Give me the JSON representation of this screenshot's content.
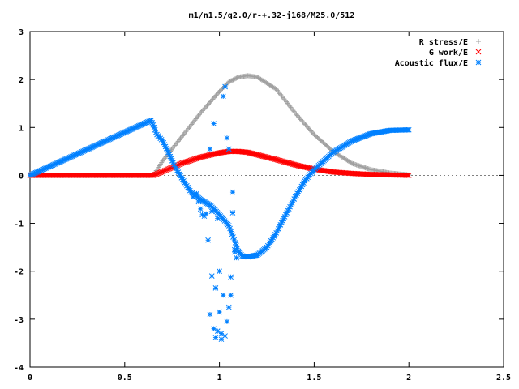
{
  "chart_data": {
    "type": "scatter",
    "title": "m1/n1.5/q2.0/r-+.32-j168/M25.0/512",
    "xlabel": "",
    "ylabel": "",
    "xlim": [
      0,
      2.5
    ],
    "ylim": [
      -4,
      3
    ],
    "x_ticks": [
      "0",
      "0.5",
      "1",
      "1.5",
      "2",
      "2.5"
    ],
    "y_ticks": [
      "-4",
      "-3",
      "-2",
      "-1",
      "0",
      "1",
      "2",
      "3"
    ],
    "grid": false,
    "legend_position": "top-right",
    "series": [
      {
        "name": "R stress/E",
        "marker": "plus",
        "color": "#a0a0a0",
        "x": [
          0,
          0.65,
          0.7,
          0.8,
          0.9,
          1.0,
          1.05,
          1.1,
          1.15,
          1.2,
          1.3,
          1.4,
          1.5,
          1.6,
          1.7,
          1.8,
          1.9,
          2.0
        ],
        "y": [
          0,
          0,
          0.3,
          0.8,
          1.3,
          1.75,
          1.95,
          2.05,
          2.08,
          2.05,
          1.8,
          1.3,
          0.85,
          0.5,
          0.25,
          0.12,
          0.05,
          0.01
        ]
      },
      {
        "name": "G work/E",
        "marker": "cross",
        "color": "#ff0000",
        "x": [
          0,
          0.65,
          0.7,
          0.8,
          0.9,
          1.0,
          1.05,
          1.1,
          1.15,
          1.2,
          1.3,
          1.4,
          1.5,
          1.6,
          1.7,
          1.8,
          1.9,
          2.0
        ],
        "y": [
          0,
          0,
          0.08,
          0.25,
          0.38,
          0.47,
          0.5,
          0.5,
          0.48,
          0.43,
          0.33,
          0.22,
          0.13,
          0.07,
          0.04,
          0.02,
          0.01,
          0.0
        ]
      },
      {
        "name": "Acoustic flux/E",
        "marker": "star",
        "color": "#0080ff",
        "x": [
          0,
          0.64,
          0.67,
          0.7,
          0.73,
          0.76,
          0.8,
          0.85,
          0.9,
          0.95,
          1.0,
          1.05,
          1.1,
          1.12,
          1.15,
          1.2,
          1.25,
          1.3,
          1.35,
          1.4,
          1.45,
          1.5,
          1.6,
          1.7,
          1.8,
          1.9,
          2.0
        ],
        "y": [
          0,
          1.15,
          0.85,
          0.72,
          0.48,
          0.22,
          -0.05,
          -0.35,
          -0.5,
          -0.62,
          -0.82,
          -1.05,
          -1.58,
          -1.68,
          -1.7,
          -1.66,
          -1.5,
          -1.2,
          -0.82,
          -0.45,
          -0.12,
          0.12,
          0.48,
          0.72,
          0.87,
          0.94,
          0.95
        ]
      },
      {
        "name": "",
        "marker": "star",
        "color": "#0080ff",
        "x": [
          0.86,
          0.88,
          0.89,
          0.9,
          0.91,
          0.92,
          0.93,
          0.94,
          0.95,
          0.96,
          0.97,
          0.98,
          0.99,
          1.0,
          1.01,
          1.02,
          1.03,
          1.04,
          1.05,
          1.06,
          1.07,
          1.08,
          1.09
        ],
        "y": [
          -0.45,
          -0.38,
          -0.55,
          -0.7,
          -0.82,
          -0.85,
          -0.8,
          -1.35,
          0.55,
          -0.75,
          1.08,
          -3.38,
          -3.25,
          -2.0,
          -3.3,
          1.65,
          1.85,
          0.78,
          0.55,
          -2.12,
          -0.35,
          -1.6,
          -1.72
        ]
      },
      {
        "name": "",
        "marker": "star",
        "color": "#0080ff",
        "x": [
          0.95,
          0.96,
          0.97,
          0.98,
          0.99,
          1.0,
          1.01,
          1.02,
          1.03,
          1.04,
          1.05,
          1.06,
          1.07,
          1.08
        ],
        "y": [
          -2.9,
          -2.1,
          -3.2,
          -2.35,
          -0.9,
          -2.85,
          -3.42,
          -2.5,
          -3.35,
          -3.05,
          -2.75,
          -2.5,
          -0.78,
          -1.55
        ]
      }
    ]
  }
}
